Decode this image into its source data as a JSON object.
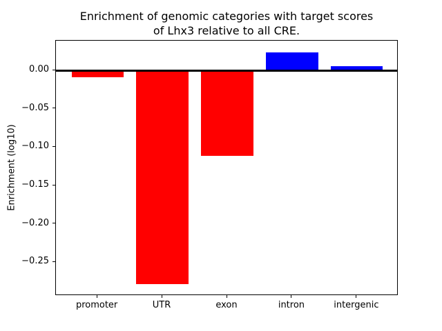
{
  "chart_data": {
    "type": "bar",
    "title": "Enrichment of genomic categories with target scores\nof Lhx3 relative to all CRE.",
    "xlabel": "",
    "ylabel": "Enrichment (log10)",
    "categories": [
      "promoter",
      "UTR",
      "exon",
      "intron",
      "intergenic"
    ],
    "values": [
      -0.009,
      -0.279,
      -0.111,
      0.024,
      0.006
    ],
    "bar_colors": [
      "#ff0000",
      "#ff0000",
      "#ff0000",
      "#0000ff",
      "#0000ff"
    ],
    "negative_color": "#ff0000",
    "positive_color": "#0000ff",
    "bar_width": 0.8,
    "xlim": [
      -0.64,
      4.64
    ],
    "ylim": [
      -0.294,
      0.039
    ],
    "yticks": [
      0.0,
      -0.05,
      -0.1,
      -0.15,
      -0.2,
      -0.25
    ],
    "ytick_labels": [
      "0.00",
      "−0.05",
      "−0.10",
      "−0.15",
      "−0.20",
      "−0.25"
    ],
    "zero_line": true,
    "grid": false,
    "legend_position": "none",
    "frame_color": "#000000"
  }
}
